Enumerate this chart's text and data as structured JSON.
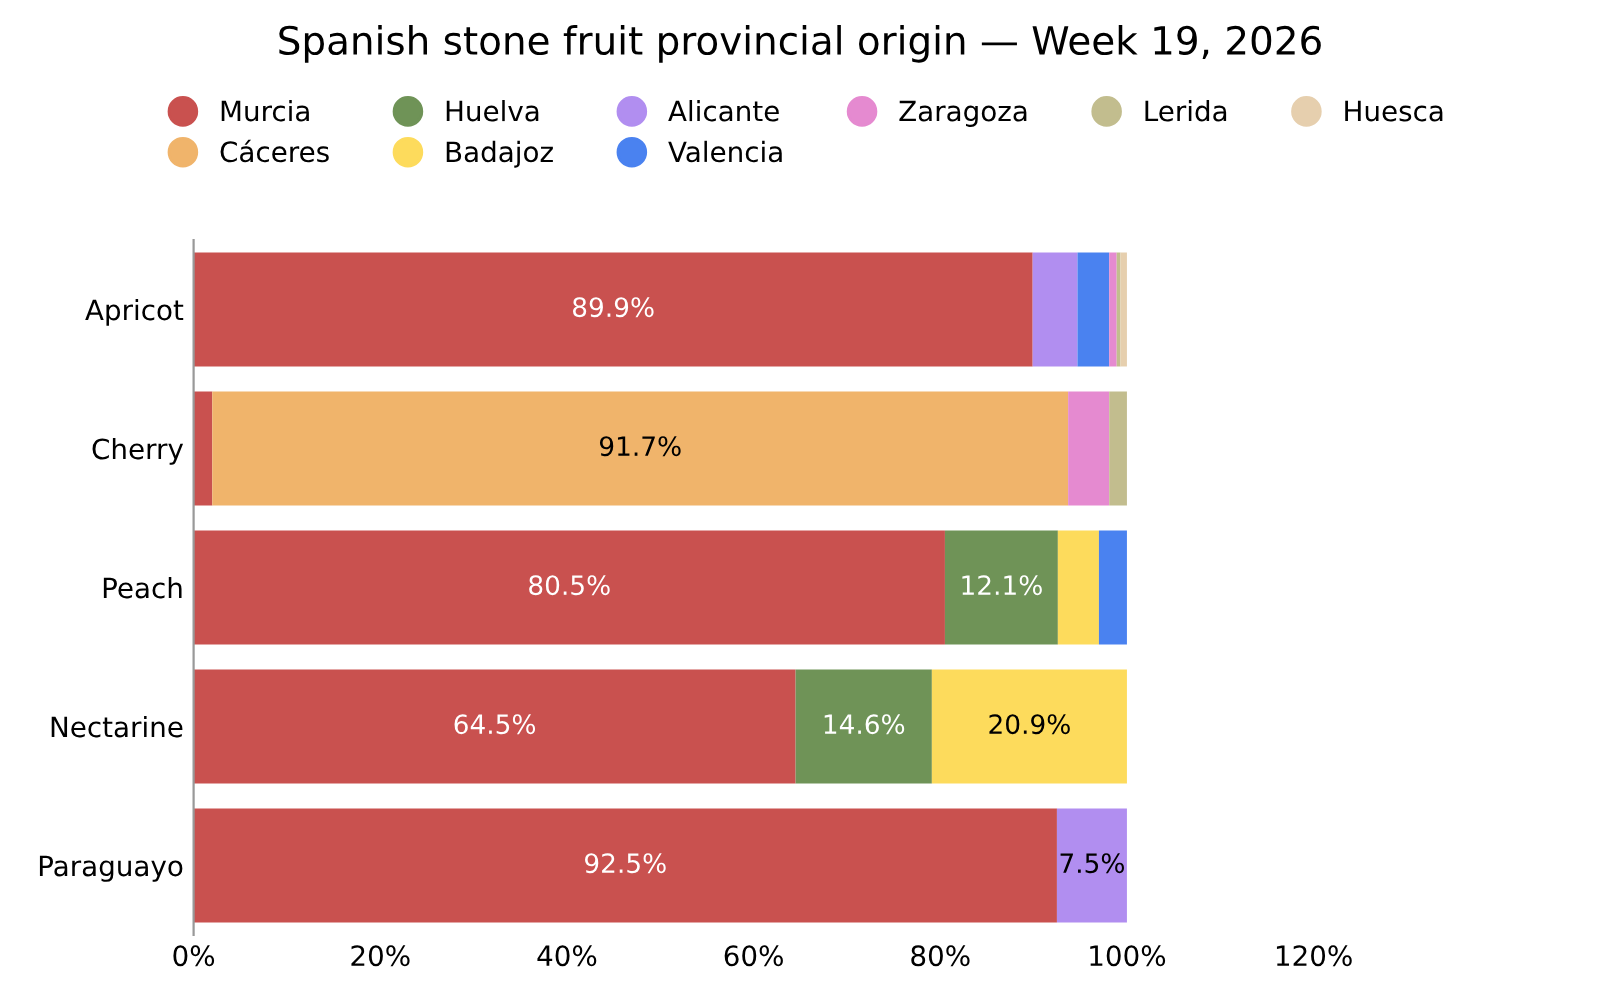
{
  "chart_data": {
    "type": "bar",
    "orientation": "horizontal",
    "stacked": true,
    "title": "Spanish stone fruit provincial origin — Week 19, 2026",
    "categories": [
      "Apricot",
      "Cherry",
      "Peach",
      "Nectarine",
      "Paraguayo"
    ],
    "series": [
      {
        "name": "Murcia",
        "color": "#c9514f",
        "values": [
          89.9,
          2.0,
          80.5,
          64.5,
          92.5
        ],
        "value_labels": [
          "89.9%",
          null,
          "80.5%",
          "64.5%",
          "92.5%"
        ]
      },
      {
        "name": "Cáceres",
        "color": "#f0b46b",
        "values": [
          0,
          91.7,
          0,
          0,
          0
        ],
        "value_labels": [
          null,
          "91.7%",
          null,
          null,
          null
        ]
      },
      {
        "name": "Huelva",
        "color": "#6f9357",
        "values": [
          0,
          0,
          12.1,
          14.6,
          0
        ],
        "value_labels": [
          null,
          null,
          "12.1%",
          "14.6%",
          null
        ]
      },
      {
        "name": "Badajoz",
        "color": "#fddb5c",
        "values": [
          0,
          0,
          4.4,
          20.9,
          0
        ],
        "value_labels": [
          null,
          null,
          null,
          "20.9%",
          null
        ]
      },
      {
        "name": "Alicante",
        "color": "#b18ef0",
        "values": [
          4.8,
          0,
          0,
          0,
          7.5
        ],
        "value_labels": [
          null,
          null,
          null,
          null,
          "7.5%"
        ]
      },
      {
        "name": "Valencia",
        "color": "#4a82f0",
        "values": [
          3.4,
          0,
          3.0,
          0,
          0
        ]
      },
      {
        "name": "Zaragoza",
        "color": "#e58ad0",
        "values": [
          0.8,
          4.4,
          0,
          0,
          0
        ]
      },
      {
        "name": "Lerida",
        "color": "#c2bd8e",
        "values": [
          0.4,
          1.9,
          0,
          0,
          0
        ]
      },
      {
        "name": "Huesca",
        "color": "#e6cfae",
        "values": [
          0.7,
          0,
          0,
          0,
          0
        ]
      }
    ],
    "xlim": [
      0,
      120
    ],
    "xticks": [
      {
        "value": 0,
        "label": "0%"
      },
      {
        "value": 20,
        "label": "20%"
      },
      {
        "value": 40,
        "label": "40%"
      },
      {
        "value": 60,
        "label": "60%"
      },
      {
        "value": 80,
        "label": "80%"
      },
      {
        "value": 100,
        "label": "100%"
      },
      {
        "value": 120,
        "label": "120%"
      }
    ],
    "legend": "top",
    "grid": false
  }
}
